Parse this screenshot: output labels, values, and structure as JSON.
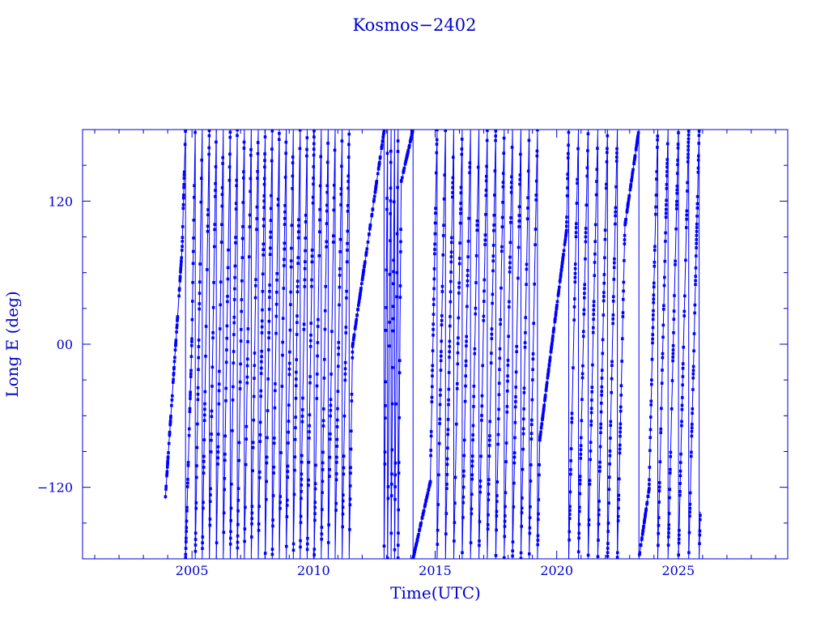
{
  "colors": {
    "axis": "#0000cc",
    "series": "#0000ff",
    "background": "#ffffff"
  },
  "chart_data": {
    "type": "line",
    "title": "Kosmos−2402",
    "xlabel": "Time(UTC)",
    "ylabel": "Long E (deg)",
    "xlim": [
      2000.5,
      2029.5
    ],
    "ylim": [
      -180,
      180
    ],
    "x_ticks": [
      {
        "value": 2005,
        "label": "2005"
      },
      {
        "value": 2010,
        "label": "2010"
      },
      {
        "value": 2015,
        "label": "2015"
      },
      {
        "value": 2020,
        "label": "2020"
      },
      {
        "value": 2025,
        "label": "2025"
      }
    ],
    "y_ticks": [
      {
        "value": 120,
        "label": "120"
      },
      {
        "value": 0,
        "label": "00"
      },
      {
        "value": -120,
        "label": "−120"
      }
    ],
    "grid": false,
    "legend": "none",
    "series": [
      {
        "drift_segments": [
          {
            "start": 2003.9,
            "end": 2004.6,
            "rate": 300
          },
          {
            "start": 2004.6,
            "end": 2005.0,
            "rate": 700
          },
          {
            "start": 2005.0,
            "end": 2011.6,
            "rate": 1250
          },
          {
            "start": 2011.6,
            "end": 2012.9,
            "rate": 140
          },
          {
            "start": 2012.9,
            "end": 2013.6,
            "rate": 2500
          },
          {
            "start": 2013.6,
            "end": 2014.8,
            "rate": 90
          },
          {
            "start": 2014.8,
            "end": 2019.3,
            "rate": 1050
          },
          {
            "start": 2019.3,
            "end": 2020.4,
            "rate": 160
          },
          {
            "start": 2020.4,
            "end": 2022.8,
            "rate": 900
          },
          {
            "start": 2022.8,
            "end": 2023.8,
            "rate": 140
          },
          {
            "start": 2023.8,
            "end": 2025.9,
            "rate": 850
          }
        ],
        "data_start": 2003.9,
        "data_end": 2025.9
      }
    ]
  }
}
